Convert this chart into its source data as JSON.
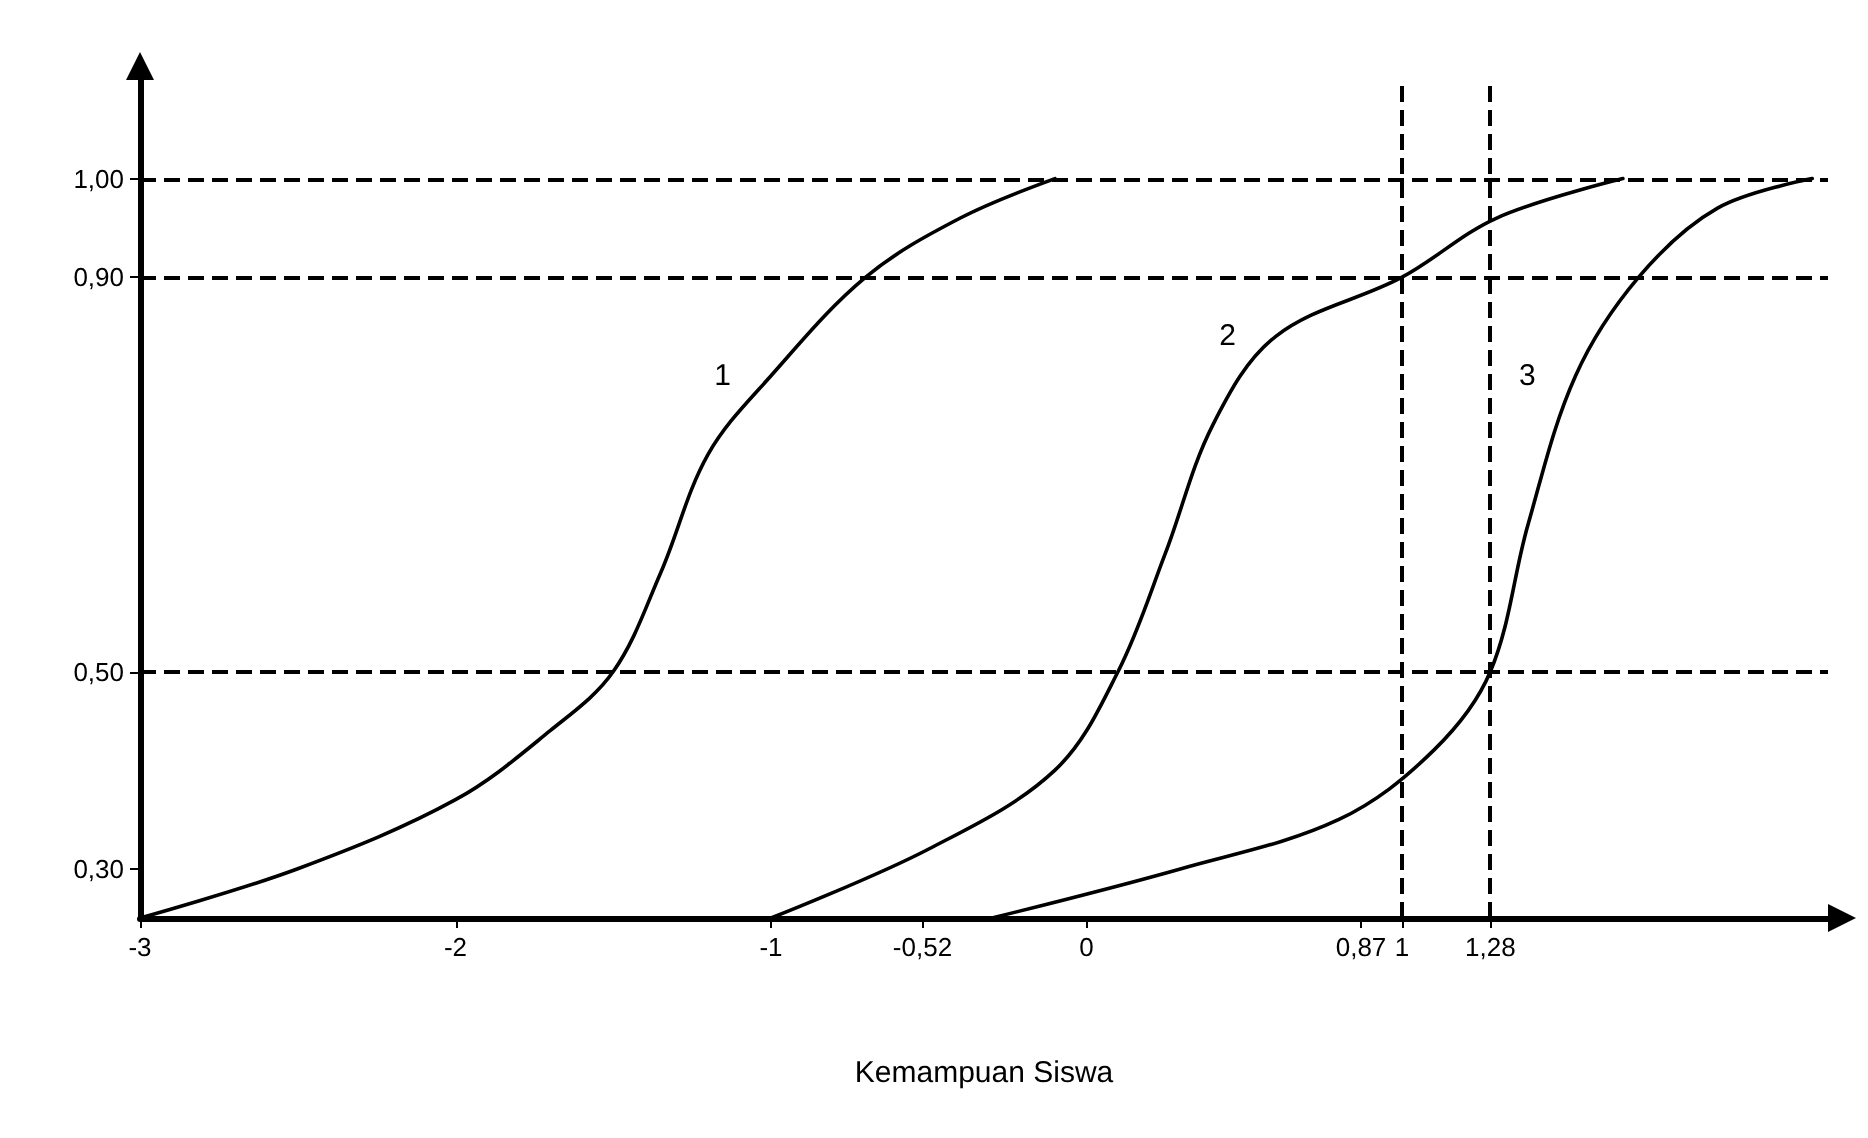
{
  "chart_data": {
    "type": "line",
    "xlabel": "Kemampuan Siswa",
    "xlim": [
      -3,
      2.35
    ],
    "xticks": [
      -3,
      -2,
      -1,
      {
        "value": -0.52,
        "label": "-0,52"
      },
      0,
      {
        "value": 0.87,
        "label": "0,87"
      },
      1,
      {
        "value": 1.28,
        "label": "1,28"
      }
    ],
    "ylim": [
      0.25,
      1.1
    ],
    "yticks": [
      {
        "value": 0.3,
        "label": "0,30"
      },
      {
        "value": 0.5,
        "label": "0,50"
      },
      {
        "value": 0.9,
        "label": "0,90"
      },
      {
        "value": 1.0,
        "label": "1,00"
      }
    ],
    "grid": false,
    "legend": false,
    "marker": "none",
    "line_style": "solid",
    "series": [
      {
        "name": "1",
        "color": "#000000",
        "x": [
          -3,
          -2.5,
          -2,
          -1.7,
          -1.5,
          -1.35,
          -1.2,
          -1,
          -0.7,
          -0.4,
          -0.1
        ],
        "values": [
          0.25,
          0.3,
          0.37,
          0.44,
          0.5,
          0.6,
          0.72,
          0.8,
          0.9,
          0.96,
          1.0
        ]
      },
      {
        "name": "2",
        "color": "#000000",
        "x": [
          -1,
          -0.5,
          -0.1,
          0.1,
          0.25,
          0.4,
          0.6,
          1,
          1.3,
          1.7
        ],
        "values": [
          0.25,
          0.32,
          0.4,
          0.5,
          0.62,
          0.75,
          0.84,
          0.9,
          0.96,
          1.0
        ]
      },
      {
        "name": "3",
        "color": "#000000",
        "x": [
          -0.3,
          0.3,
          0.8,
          1.1,
          1.28,
          1.4,
          1.55,
          1.75,
          2,
          2.3
        ],
        "values": [
          0.25,
          0.3,
          0.35,
          0.42,
          0.5,
          0.65,
          0.8,
          0.9,
          0.97,
          1.0
        ]
      }
    ],
    "ref_lines": [
      {
        "axis": "y",
        "value": 1.0,
        "color": "#000000",
        "line_style": "dashed"
      },
      {
        "axis": "y",
        "value": 0.9,
        "color": "#000000",
        "line_style": "dashed"
      },
      {
        "axis": "y",
        "value": 0.5,
        "color": "#000000",
        "line_style": "dashed"
      },
      {
        "axis": "x",
        "value": 1,
        "color": "#000000",
        "line_style": "dashed"
      },
      {
        "axis": "x",
        "value": 1.28,
        "color": "#000000",
        "line_style": "dashed"
      }
    ]
  }
}
